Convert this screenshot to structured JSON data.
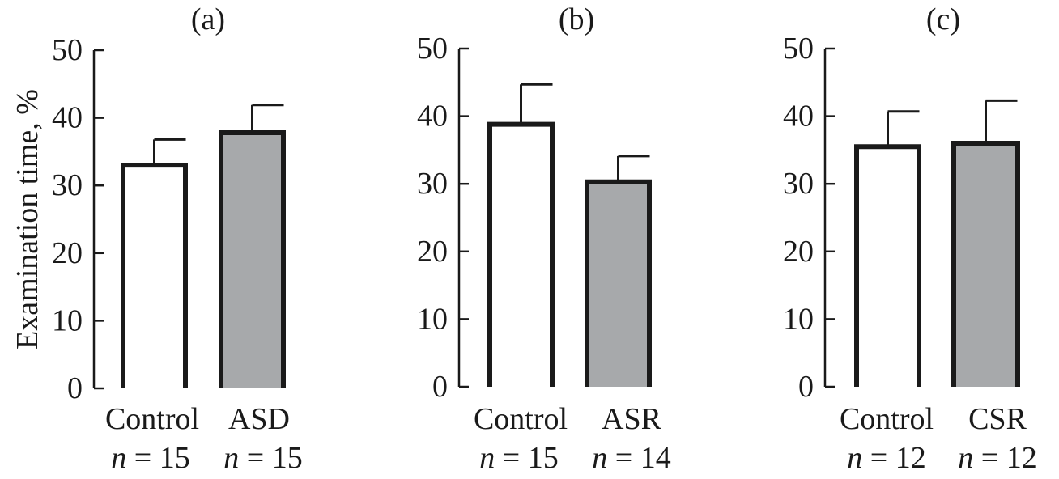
{
  "ylabel": "Examination time, %",
  "chart_data": [
    {
      "type": "bar",
      "title": "(a)",
      "ylabel": "Examination time, %",
      "ylim": [
        0,
        50
      ],
      "yticks": [
        "0",
        "10",
        "20",
        "30",
        "40",
        "50"
      ],
      "categories": [
        "Control",
        "ASD"
      ],
      "n_labels": [
        "n = 15",
        "n = 15"
      ],
      "values": [
        33,
        37.8
      ],
      "errors": [
        3.8,
        4.1
      ],
      "fill_colors": [
        "#ffffff",
        "#a7a9ab"
      ]
    },
    {
      "type": "bar",
      "title": "(b)",
      "ylim": [
        0,
        50
      ],
      "yticks": [
        "0",
        "10",
        "20",
        "30",
        "40",
        "50"
      ],
      "categories": [
        "Control",
        "ASR"
      ],
      "n_labels": [
        "n = 15",
        "n = 14"
      ],
      "values": [
        38.8,
        30.3
      ],
      "errors": [
        5.9,
        3.8
      ],
      "fill_colors": [
        "#ffffff",
        "#a7a9ab"
      ]
    },
    {
      "type": "bar",
      "title": "(c)",
      "ylim": [
        0,
        50
      ],
      "yticks": [
        "0",
        "10",
        "20",
        "30",
        "40",
        "50"
      ],
      "categories": [
        "Control",
        "CSR"
      ],
      "n_labels": [
        "n = 12",
        "n = 12"
      ],
      "values": [
        35.5,
        36
      ],
      "errors": [
        5.2,
        6.3
      ],
      "fill_colors": [
        "#ffffff",
        "#a7a9ab"
      ]
    }
  ]
}
